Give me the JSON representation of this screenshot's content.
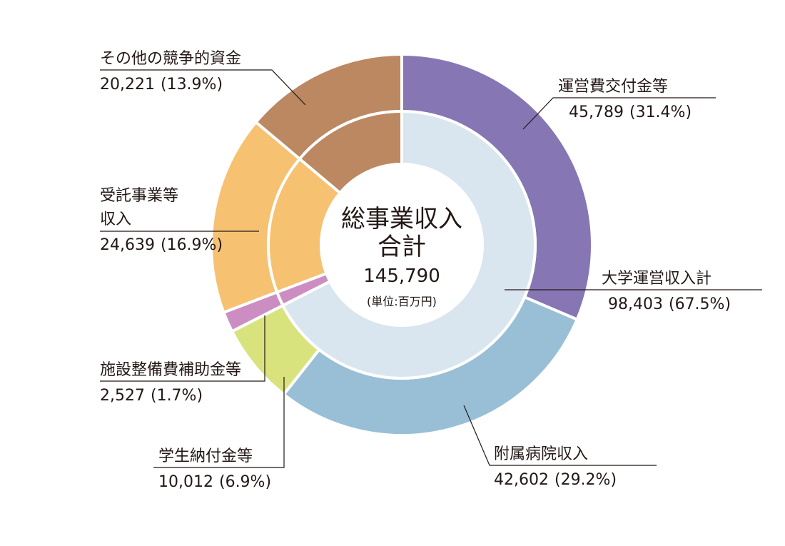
{
  "chart_data": {
    "type": "pie",
    "unit": "(単位:百万円)",
    "center": {
      "title_line1": "総事業収入",
      "title_line2": "合計",
      "total": "145,790"
    },
    "outer": [
      {
        "name": "運営費交付金等",
        "value": 45789,
        "value_label": "45,789",
        "percent_label": "(31.4%)",
        "color": "#8676b4"
      },
      {
        "name": "附属病院収入",
        "value": 42602,
        "value_label": "42,602",
        "percent_label": "(29.2%)",
        "color": "#99bfd7"
      },
      {
        "name": "学生納付金等",
        "value": 10012,
        "value_label": "10,012",
        "percent_label": "(6.9%)",
        "color": "#d8e37e"
      },
      {
        "name": "施設整備費補助金等",
        "value": 2527,
        "value_label": "2,527",
        "percent_label": "(1.7%)",
        "color": "#cc8ec2"
      },
      {
        "name": "受託事業等",
        "name2": "収入",
        "value": 24639,
        "value_label": "24,639",
        "percent_label": "(16.9%)",
        "color": "#f7c172"
      },
      {
        "name": "その他の競争的資金",
        "value": 20221,
        "value_label": "20,221",
        "percent_label": "(13.9%)",
        "color": "#bb8862"
      }
    ],
    "inner": [
      {
        "name": "大学運営収入計",
        "value": 98403,
        "value_label": "98,403",
        "percent_label": "(67.5%)",
        "color": "#dae6ef"
      },
      {
        "name": "施設整備費補助金等",
        "value": 2527,
        "color": "#cc8ec2"
      },
      {
        "name": "受託事業等収入",
        "value": 24639,
        "color": "#f7c172"
      },
      {
        "name": "その他の競争的資金",
        "value": 20221,
        "color": "#bb8862"
      }
    ]
  }
}
